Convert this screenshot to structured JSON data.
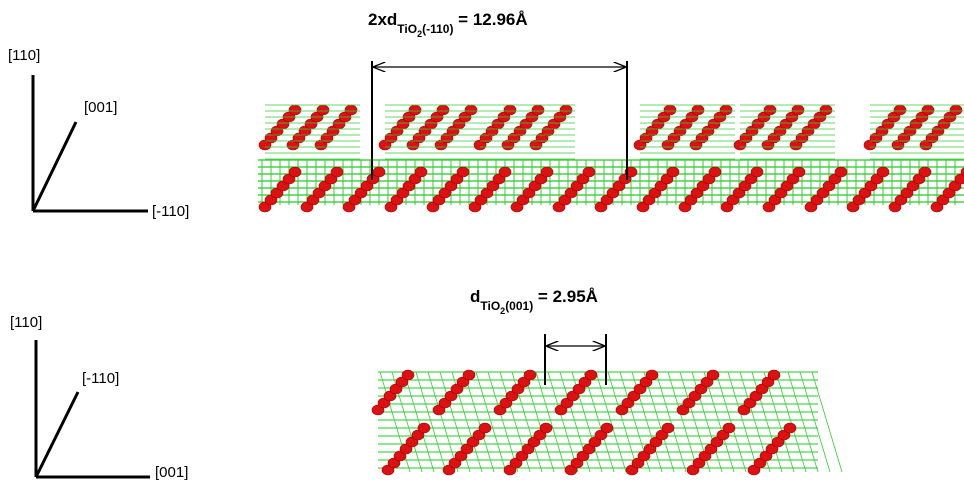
{
  "panels": [
    {
      "axes": {
        "up": "[110]",
        "diagonal": "[001]",
        "right": "[-110]"
      },
      "measurement": {
        "symbol": "2xd",
        "sub": "TiO",
        "sub_index": "2",
        "plane": "(-110)",
        "value": " = 12.96Å"
      }
    },
    {
      "axes": {
        "up": "[110]",
        "diagonal": "[-110]",
        "right": "[001]"
      },
      "measurement": {
        "symbol": "d",
        "sub": "TiO",
        "sub_index": "2",
        "plane": "(001)",
        "value": " = 2.95Å"
      }
    }
  ]
}
